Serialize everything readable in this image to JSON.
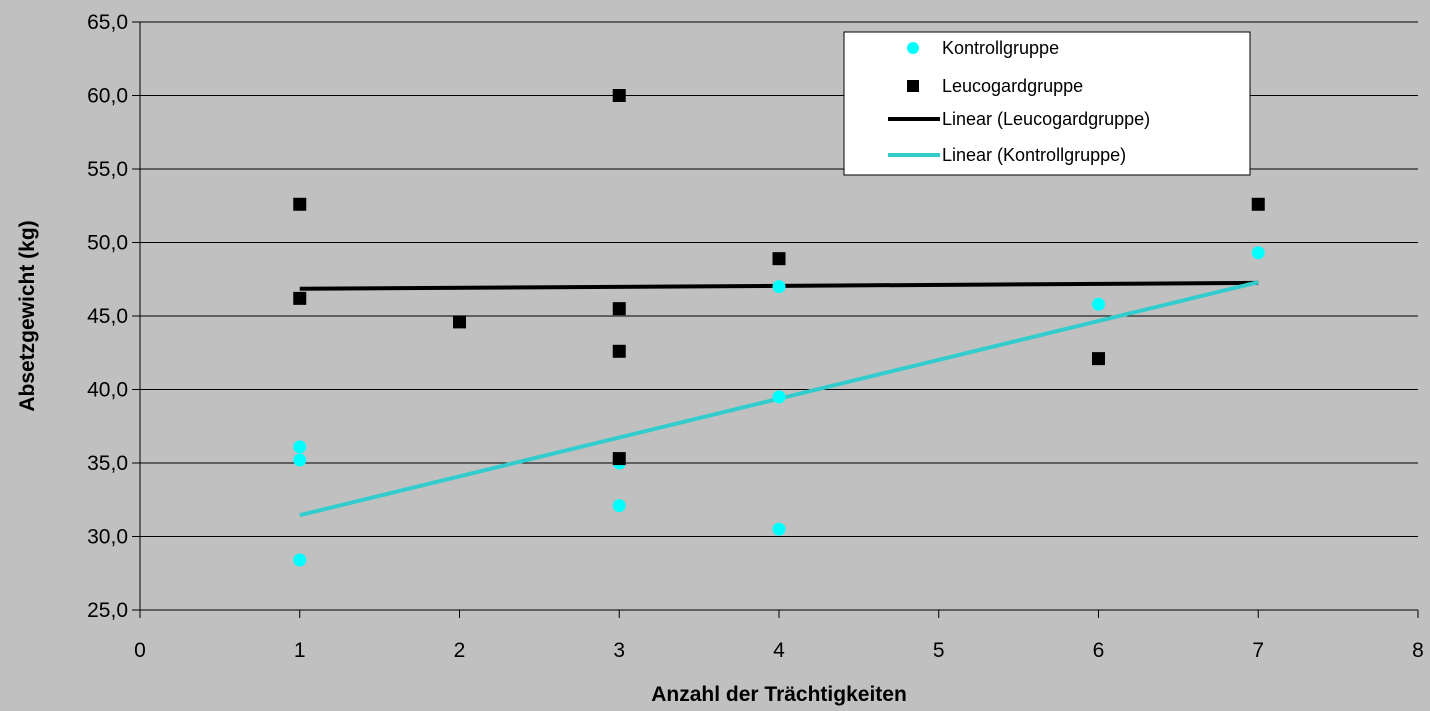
{
  "chart_data": {
    "type": "scatter",
    "xlabel": "Anzahl der Trächtigkeiten",
    "ylabel": "Absetzgewicht (kg)",
    "xlim": [
      0,
      8
    ],
    "ylim": [
      25,
      65
    ],
    "x_ticks": [
      "0",
      "1",
      "2",
      "3",
      "4",
      "5",
      "6",
      "7",
      "8"
    ],
    "y_ticks": [
      "25,0",
      "30,0",
      "35,0",
      "40,0",
      "45,0",
      "50,0",
      "55,0",
      "60,0",
      "65,0"
    ],
    "grid": "horizontal",
    "legend_position": "top-right",
    "series": [
      {
        "name": "Kontrollgruppe",
        "marker": "circle",
        "color": "#00ffff",
        "points": [
          [
            1,
            36.1
          ],
          [
            1,
            35.2
          ],
          [
            1,
            28.4
          ],
          [
            3,
            35.0
          ],
          [
            3,
            32.1
          ],
          [
            4,
            47.0
          ],
          [
            4,
            39.5
          ],
          [
            4,
            30.5
          ],
          [
            6,
            45.8
          ],
          [
            7,
            49.3
          ]
        ]
      },
      {
        "name": "Leucogardgruppe",
        "marker": "square",
        "color": "#000000",
        "points": [
          [
            1,
            52.6
          ],
          [
            1,
            46.2
          ],
          [
            2,
            44.6
          ],
          [
            3,
            60.0
          ],
          [
            3,
            45.5
          ],
          [
            3,
            42.6
          ],
          [
            3,
            35.3
          ],
          [
            4,
            48.9
          ],
          [
            6,
            42.1
          ],
          [
            7,
            52.6
          ]
        ]
      }
    ],
    "trendlines": [
      {
        "name": "Linear (Leucogardgruppe)",
        "color": "#000000",
        "x": [
          1,
          7
        ],
        "y": [
          46.85,
          47.25
        ]
      },
      {
        "name": "Linear (Kontrollgruppe)",
        "color": "#33cccc",
        "x": [
          1,
          7
        ],
        "y": [
          31.45,
          47.3
        ]
      }
    ]
  }
}
